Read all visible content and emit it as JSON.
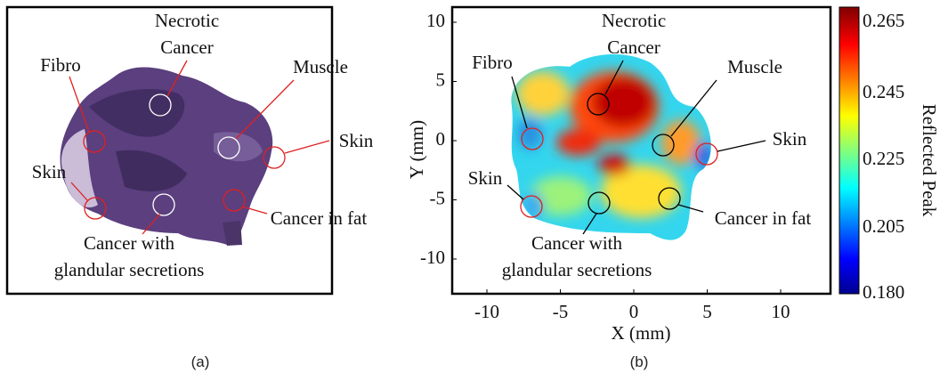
{
  "panels": [
    {
      "label": "(a)",
      "annotations": [
        "Necrotic",
        "Cancer",
        "Fibro",
        "Muscle",
        "Skin",
        "Skin",
        "Cancer in fat",
        "Cancer with",
        "glandular secretions"
      ]
    },
    {
      "label": "(b)",
      "annotations": [
        "Necrotic",
        "Cancer",
        "Fibro",
        "Muscle",
        "Skin",
        "Skin",
        "Cancer in fat",
        "Cancer with",
        "glandular secretions"
      ],
      "x_axis": {
        "label": "X (mm)",
        "ticks": [
          -10,
          -5,
          0,
          5,
          10
        ]
      },
      "y_axis": {
        "label": "Y (mm)",
        "ticks": [
          10,
          5,
          0,
          -5,
          -10
        ]
      },
      "colorbar": {
        "label": "Reflected Peak",
        "ticks": [
          "0.265",
          "0.245",
          "0.225",
          "0.205",
          "0.180"
        ]
      }
    }
  ]
}
